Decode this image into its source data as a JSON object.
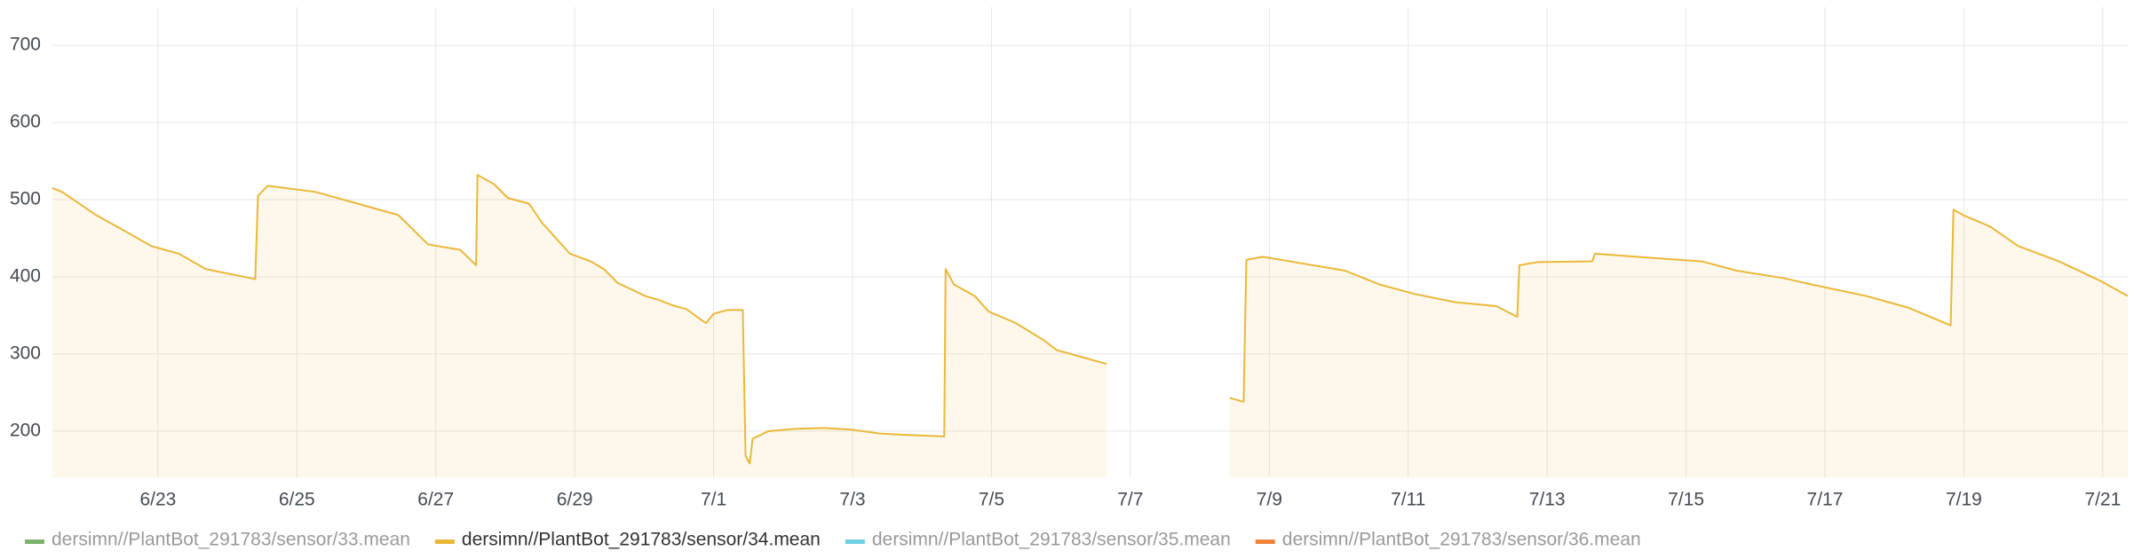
{
  "chart_data": {
    "type": "line",
    "x": [
      21.48,
      21.62,
      22.11,
      22.51,
      22.9,
      23.3,
      23.69,
      24.4,
      24.44,
      24.58,
      25.27,
      25.87,
      26.46,
      26.89,
      27.35,
      27.58,
      27.6,
      27.84,
      28.04,
      28.34,
      28.53,
      28.93,
      29.23,
      29.42,
      29.62,
      30.02,
      30.21,
      30.41,
      30.61,
      30.81,
      30.89,
      31.0,
      31.2,
      31.42,
      31.46,
      31.52,
      31.56,
      31.79,
      32.19,
      32.58,
      32.98,
      33.38,
      33.77,
      34.32,
      34.34,
      34.46,
      34.76,
      34.96,
      35.35,
      35.75,
      35.94,
      36.34,
      36.66,
      37.5,
      38.43,
      38.63,
      38.67,
      38.91,
      39.3,
      40.09,
      40.59,
      41.08,
      41.68,
      42.27,
      42.57,
      42.6,
      42.86,
      43.65,
      43.69,
      44.44,
      45.23,
      45.73,
      46.42,
      46.81,
      47.6,
      48.2,
      48.81,
      48.85,
      48.99,
      49.38,
      49.78,
      50.37,
      50.96,
      51.36
    ],
    "series": [
      {
        "name": "dersimn//PlantBot_291783/sensor/34.mean",
        "color": "#eab839",
        "values": [
          515,
          510,
          480,
          460,
          440,
          430,
          410,
          397,
          505,
          518,
          510,
          495,
          480,
          442,
          435,
          415,
          532,
          520,
          502,
          495,
          470,
          430,
          420,
          410,
          392,
          375,
          370,
          363,
          358,
          345,
          340,
          352,
          357,
          357,
          168,
          158,
          190,
          200,
          203,
          204,
          202,
          197,
          195,
          193,
          410,
          390,
          375,
          355,
          340,
          318,
          305,
          295,
          287,
          null,
          243,
          238,
          422,
          426,
          420,
          408,
          390,
          378,
          367,
          362,
          348,
          415,
          419,
          420,
          430,
          425,
          420,
          408,
          398,
          390,
          375,
          360,
          337,
          487,
          480,
          465,
          440,
          420,
          395,
          375
        ]
      }
    ],
    "legend": [
      {
        "name": "dersimn//PlantBot_291783/sensor/33.mean",
        "color": "#7eb26d",
        "hidden": true
      },
      {
        "name": "dersimn//PlantBot_291783/sensor/34.mean",
        "color": "#eab839",
        "hidden": false
      },
      {
        "name": "dersimn//PlantBot_291783/sensor/35.mean",
        "color": "#6ed0e0",
        "hidden": true
      },
      {
        "name": "dersimn//PlantBot_291783/sensor/36.mean",
        "color": "#ef843c",
        "hidden": true
      }
    ],
    "xlim": [
      21.48,
      51.36
    ],
    "ylim": [
      140,
      745
    ],
    "xticks": [
      {
        "value": 23,
        "label": "6/23"
      },
      {
        "value": 25,
        "label": "6/25"
      },
      {
        "value": 27,
        "label": "6/27"
      },
      {
        "value": 29,
        "label": "6/29"
      },
      {
        "value": 31,
        "label": "7/1"
      },
      {
        "value": 33,
        "label": "7/3"
      },
      {
        "value": 35,
        "label": "7/5"
      },
      {
        "value": 37,
        "label": "7/7"
      },
      {
        "value": 39,
        "label": "7/9"
      },
      {
        "value": 41,
        "label": "7/11"
      },
      {
        "value": 43,
        "label": "7/13"
      },
      {
        "value": 45,
        "label": "7/15"
      },
      {
        "value": 47,
        "label": "7/17"
      },
      {
        "value": 49,
        "label": "7/19"
      },
      {
        "value": 51,
        "label": "7/21"
      }
    ],
    "yticks": [
      200,
      300,
      400,
      500,
      600,
      700
    ],
    "grid": true,
    "fill": true
  }
}
